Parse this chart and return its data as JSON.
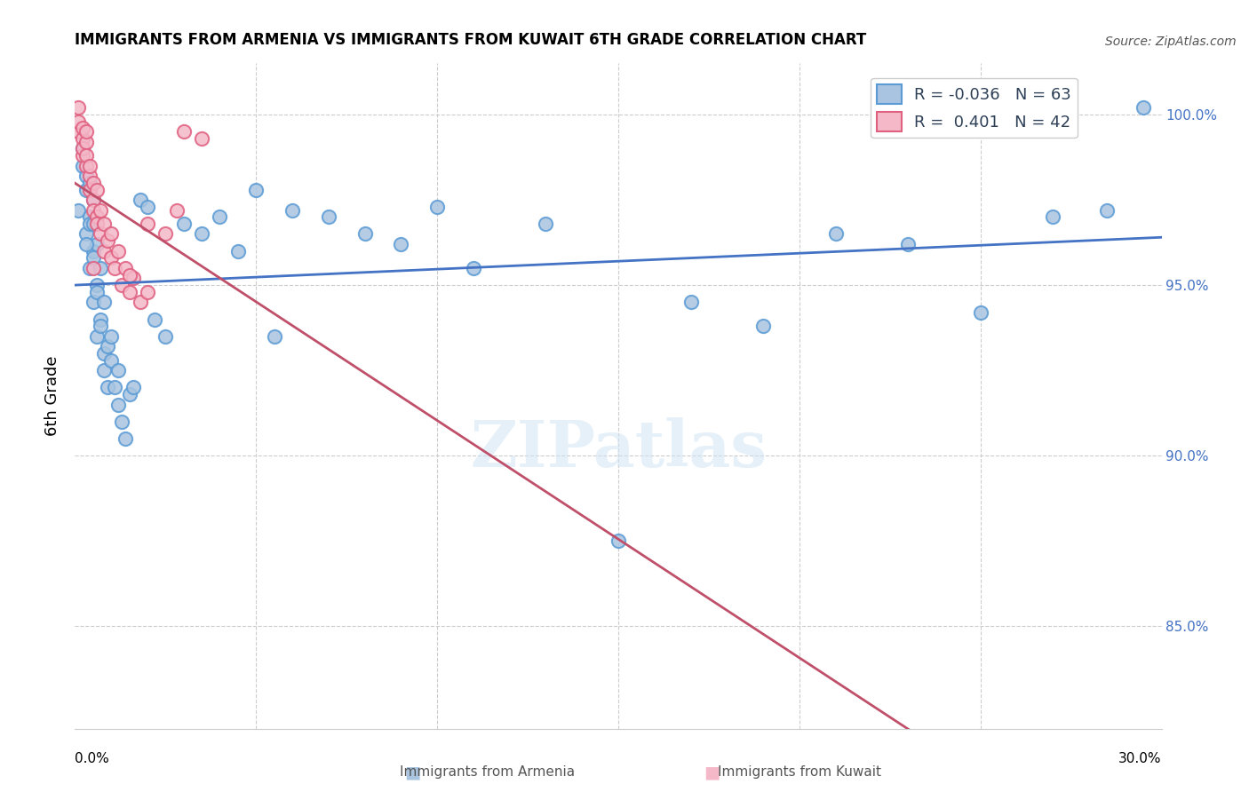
{
  "title": "IMMIGRANTS FROM ARMENIA VS IMMIGRANTS FROM KUWAIT 6TH GRADE CORRELATION CHART",
  "source": "Source: ZipAtlas.com",
  "ylabel": "6th Grade",
  "y_ticks": [
    85.0,
    90.0,
    95.0,
    100.0
  ],
  "y_tick_labels": [
    "85.0%",
    "90.0%",
    "95.0%",
    "100.0%"
  ],
  "x_range": [
    0.0,
    0.3
  ],
  "y_range": [
    82.0,
    101.5
  ],
  "armenia_R": "-0.036",
  "armenia_N": "63",
  "kuwait_R": "0.401",
  "kuwait_N": "42",
  "armenia_color": "#a8c4e0",
  "armenia_edge_color": "#5b9bd5",
  "kuwait_color": "#f4b8c8",
  "kuwait_edge_color": "#e06080",
  "trendline_armenia_color": "#4472C4",
  "trendline_kuwait_color": "#C0506A",
  "watermark": "ZIPatlas",
  "armenia_x": [
    0.001,
    0.002,
    0.002,
    0.003,
    0.003,
    0.003,
    0.004,
    0.004,
    0.004,
    0.004,
    0.005,
    0.005,
    0.005,
    0.005,
    0.006,
    0.006,
    0.006,
    0.006,
    0.007,
    0.007,
    0.007,
    0.008,
    0.008,
    0.008,
    0.009,
    0.009,
    0.01,
    0.01,
    0.011,
    0.012,
    0.012,
    0.013,
    0.014,
    0.015,
    0.016,
    0.018,
    0.02,
    0.022,
    0.025,
    0.03,
    0.035,
    0.04,
    0.045,
    0.05,
    0.055,
    0.06,
    0.07,
    0.08,
    0.09,
    0.1,
    0.11,
    0.13,
    0.15,
    0.17,
    0.19,
    0.21,
    0.23,
    0.25,
    0.27,
    0.285,
    0.295,
    0.005,
    0.003
  ],
  "armenia_y": [
    97.2,
    98.5,
    99.0,
    97.8,
    98.2,
    96.5,
    97.0,
    98.0,
    96.8,
    95.5,
    96.0,
    97.5,
    95.8,
    94.5,
    96.2,
    95.0,
    94.8,
    93.5,
    95.5,
    94.0,
    93.8,
    94.5,
    93.0,
    92.5,
    93.2,
    92.0,
    93.5,
    92.8,
    92.0,
    91.5,
    92.5,
    91.0,
    90.5,
    91.8,
    92.0,
    97.5,
    97.3,
    94.0,
    93.5,
    96.8,
    96.5,
    97.0,
    96.0,
    97.8,
    93.5,
    97.2,
    97.0,
    96.5,
    96.2,
    97.3,
    95.5,
    96.8,
    87.5,
    94.5,
    93.8,
    96.5,
    96.2,
    94.2,
    97.0,
    97.2,
    100.2,
    96.8,
    96.2
  ],
  "kuwait_x": [
    0.001,
    0.001,
    0.001,
    0.002,
    0.002,
    0.002,
    0.002,
    0.003,
    0.003,
    0.003,
    0.003,
    0.004,
    0.004,
    0.004,
    0.005,
    0.005,
    0.005,
    0.006,
    0.006,
    0.006,
    0.007,
    0.007,
    0.008,
    0.008,
    0.009,
    0.01,
    0.01,
    0.011,
    0.012,
    0.013,
    0.014,
    0.015,
    0.016,
    0.018,
    0.02,
    0.025,
    0.028,
    0.03,
    0.035,
    0.015,
    0.02,
    0.005
  ],
  "kuwait_y": [
    99.5,
    99.8,
    100.2,
    99.3,
    99.6,
    98.8,
    99.0,
    99.2,
    98.5,
    98.8,
    99.5,
    98.2,
    98.5,
    97.8,
    97.5,
    98.0,
    97.2,
    97.8,
    97.0,
    96.8,
    96.5,
    97.2,
    96.8,
    96.0,
    96.3,
    95.8,
    96.5,
    95.5,
    96.0,
    95.0,
    95.5,
    94.8,
    95.2,
    94.5,
    94.8,
    96.5,
    97.2,
    99.5,
    99.3,
    95.3,
    96.8,
    95.5
  ]
}
